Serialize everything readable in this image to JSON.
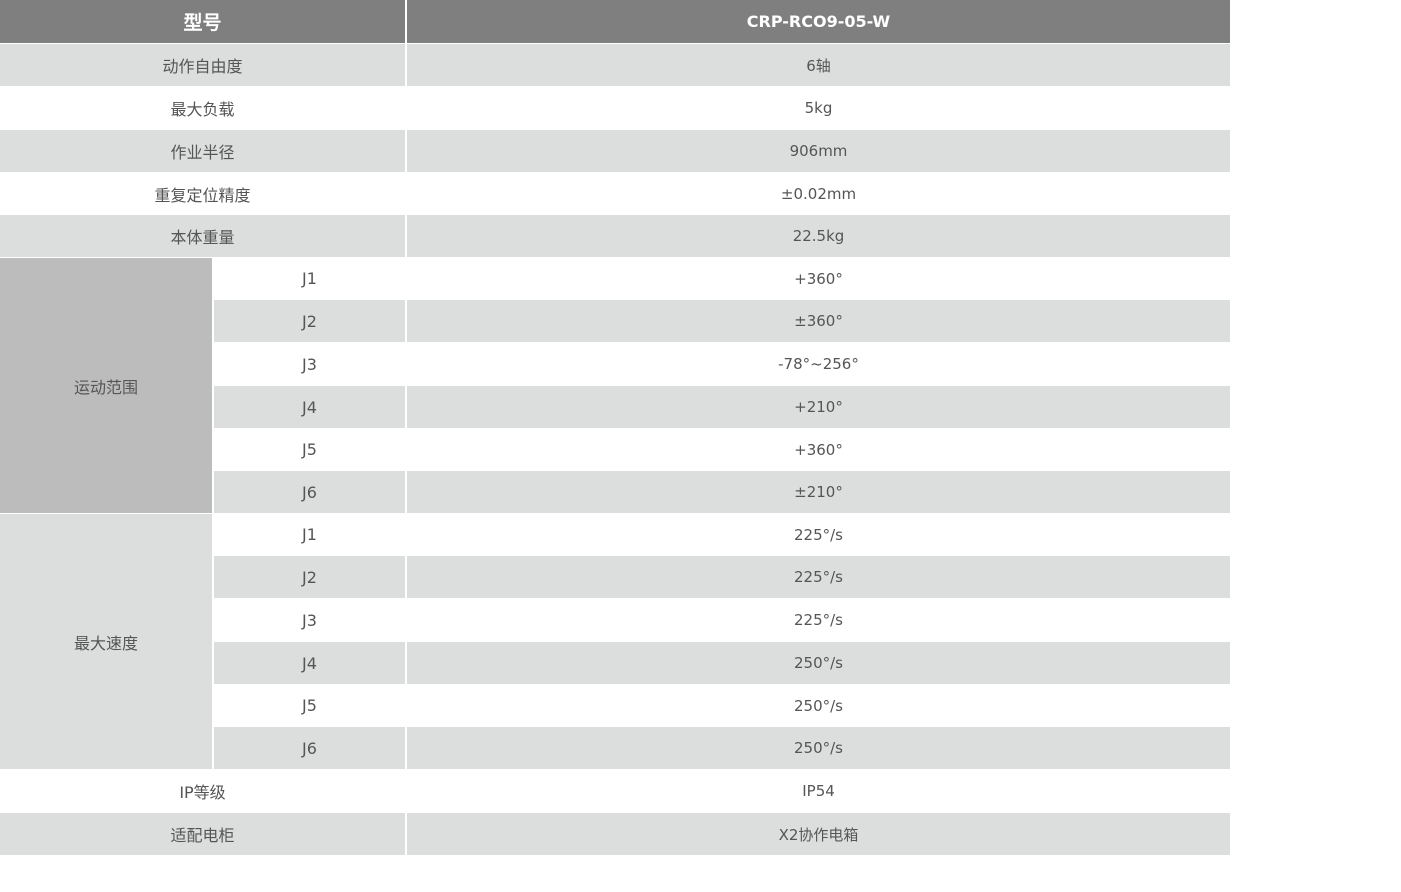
{
  "header": {
    "label": "型号",
    "model": "CRP-RCO9-05-W"
  },
  "rows": [
    {
      "label": "动作自由度",
      "value": "6轴"
    },
    {
      "label": "最大负载",
      "value": "5kg"
    },
    {
      "label": "作业半径",
      "value": "906mm"
    },
    {
      "label": "重复定位精度",
      "value": "±0.02mm"
    },
    {
      "label": "本体重量",
      "value": "22.5kg"
    }
  ],
  "motion_range": {
    "label": "运动范围",
    "joints": [
      {
        "joint": "J1",
        "value": "+360°"
      },
      {
        "joint": "J2",
        "value": "±360°"
      },
      {
        "joint": "J3",
        "value": "-78°~256°"
      },
      {
        "joint": "J4",
        "value": "+210°"
      },
      {
        "joint": "J5",
        "value": "+360°"
      },
      {
        "joint": "J6",
        "value": "±210°"
      }
    ]
  },
  "max_speed": {
    "label": "最大速度",
    "joints": [
      {
        "joint": "J1",
        "value": "225°/s"
      },
      {
        "joint": "J2",
        "value": "225°/s"
      },
      {
        "joint": "J3",
        "value": "225°/s"
      },
      {
        "joint": "J4",
        "value": "250°/s"
      },
      {
        "joint": "J5",
        "value": "250°/s"
      },
      {
        "joint": "J6",
        "value": "250°/s"
      }
    ]
  },
  "footer_rows": [
    {
      "label": "IP等级",
      "value": "IP54"
    },
    {
      "label": "适配电柜",
      "value": "X2协作电箱"
    }
  ],
  "colors": {
    "header": "#7f7f7f",
    "stripe": "#dcdedd",
    "merged": "#bcbcbc",
    "text": "#555555"
  }
}
